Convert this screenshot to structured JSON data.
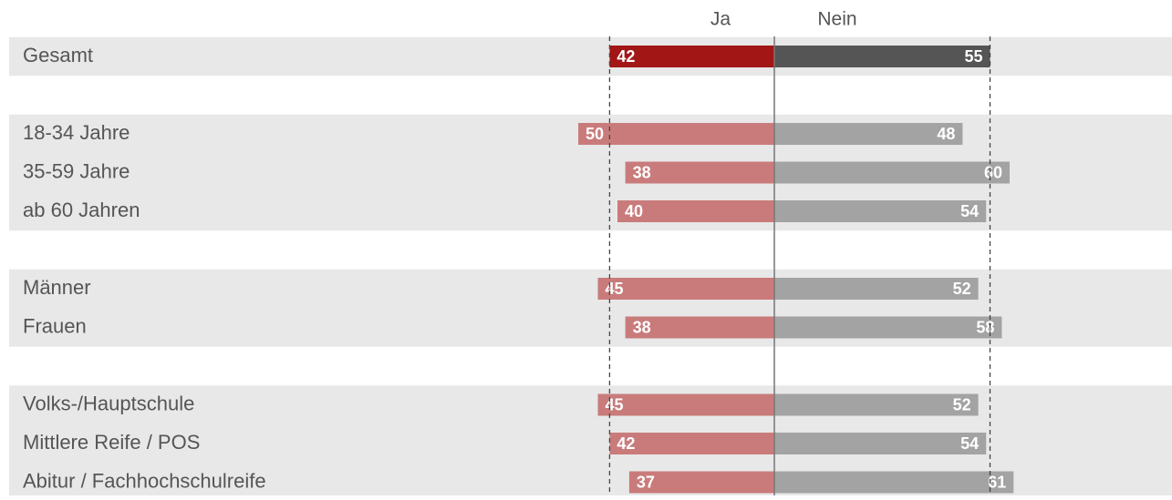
{
  "chart_data": {
    "type": "diverging_bar",
    "categories": [
      "Gesamt",
      null,
      "18-34 Jahre",
      "35-59 Jahre",
      "ab 60 Jahren",
      null,
      "Männer",
      "Frauen",
      null,
      "Volks-/Hauptschule",
      "Mittlere Reife / POS",
      "Abitur / Fachhochschulreife"
    ],
    "series": [
      {
        "name": "Ja",
        "color": "#c97b7b",
        "highlight_color": "#a31616",
        "values": [
          42,
          null,
          50,
          38,
          40,
          null,
          45,
          38,
          null,
          45,
          42,
          37
        ]
      },
      {
        "name": "Nein",
        "color": "#a3a3a3",
        "highlight_color": "#555555",
        "values": [
          55,
          null,
          48,
          60,
          54,
          null,
          52,
          58,
          null,
          52,
          54,
          61
        ]
      }
    ],
    "highlight_index": 0
  }
}
